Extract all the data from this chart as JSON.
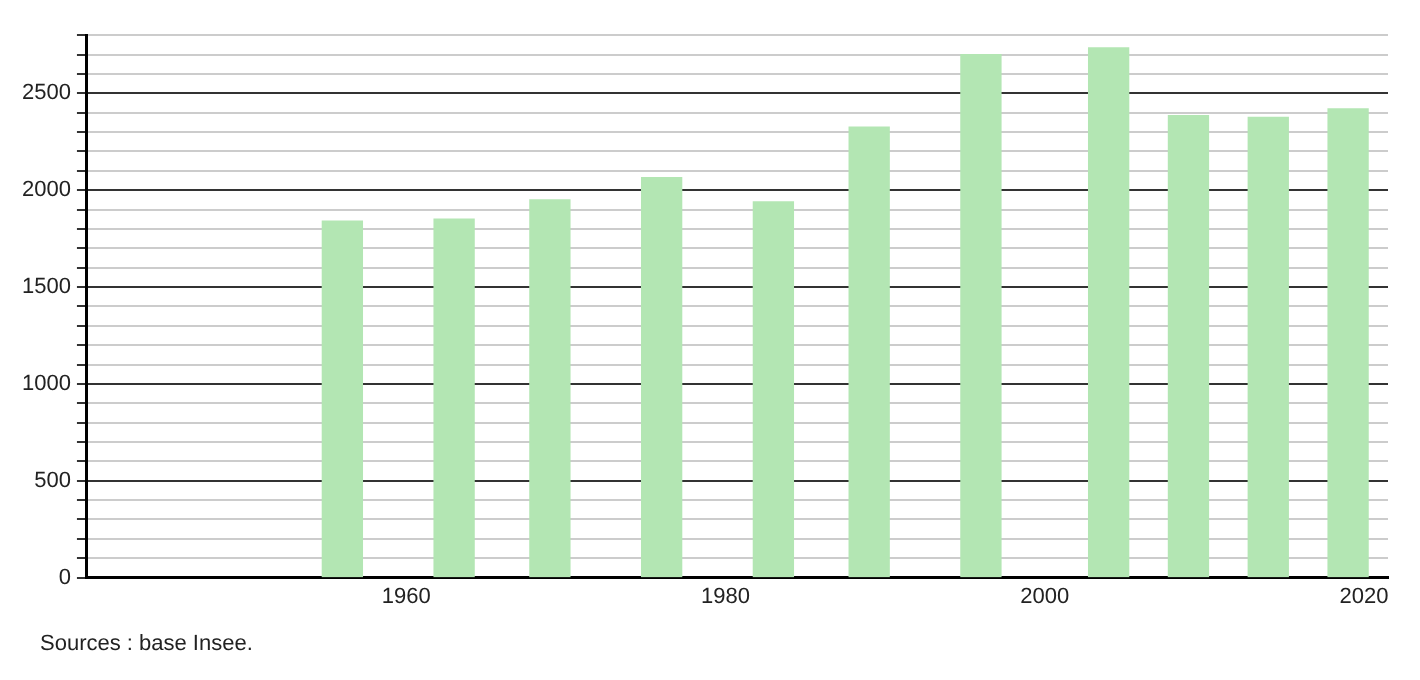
{
  "chart_data": {
    "type": "bar",
    "x": [
      1956,
      1963,
      1969,
      1976,
      1983,
      1989,
      1996,
      2004,
      2009,
      2014,
      2019
    ],
    "values": [
      1840,
      1850,
      1950,
      2065,
      1940,
      2325,
      2700,
      2735,
      2385,
      2375,
      2420
    ],
    "color": "#b3e6b3",
    "xlim": [
      1940,
      2021.5
    ],
    "xticks": [
      1960,
      1980,
      2000,
      2020
    ],
    "ylim": [
      0,
      2800
    ],
    "yticks": [
      0,
      {
        "value": 100,
        "label": null
      },
      {
        "value": 200,
        "label": null
      },
      {
        "value": 300,
        "label": null
      },
      {
        "value": 400,
        "label": null
      },
      500,
      {
        "value": 600,
        "label": null
      },
      {
        "value": 700,
        "label": null
      },
      {
        "value": 800,
        "label": null
      },
      {
        "value": 900,
        "label": null
      },
      1000,
      {
        "value": 1100,
        "label": null
      },
      {
        "value": 1200,
        "label": null
      },
      {
        "value": 1300,
        "label": null
      },
      {
        "value": 1400,
        "label": null
      },
      1500,
      {
        "value": 1600,
        "label": null
      },
      {
        "value": 1700,
        "label": null
      },
      {
        "value": 1800,
        "label": null
      },
      {
        "value": 1900,
        "label": null
      },
      2000,
      {
        "value": 2100,
        "label": null
      },
      {
        "value": 2200,
        "label": null
      },
      {
        "value": 2300,
        "label": null
      },
      {
        "value": 2400,
        "label": null
      },
      2500,
      {
        "value": 2600,
        "label": null
      },
      {
        "value": 2700,
        "label": null
      },
      {
        "value": 2800,
        "label": null
      }
    ],
    "grid": "y",
    "legend": false,
    "annotations": [
      "Sources : base Insee."
    ]
  }
}
